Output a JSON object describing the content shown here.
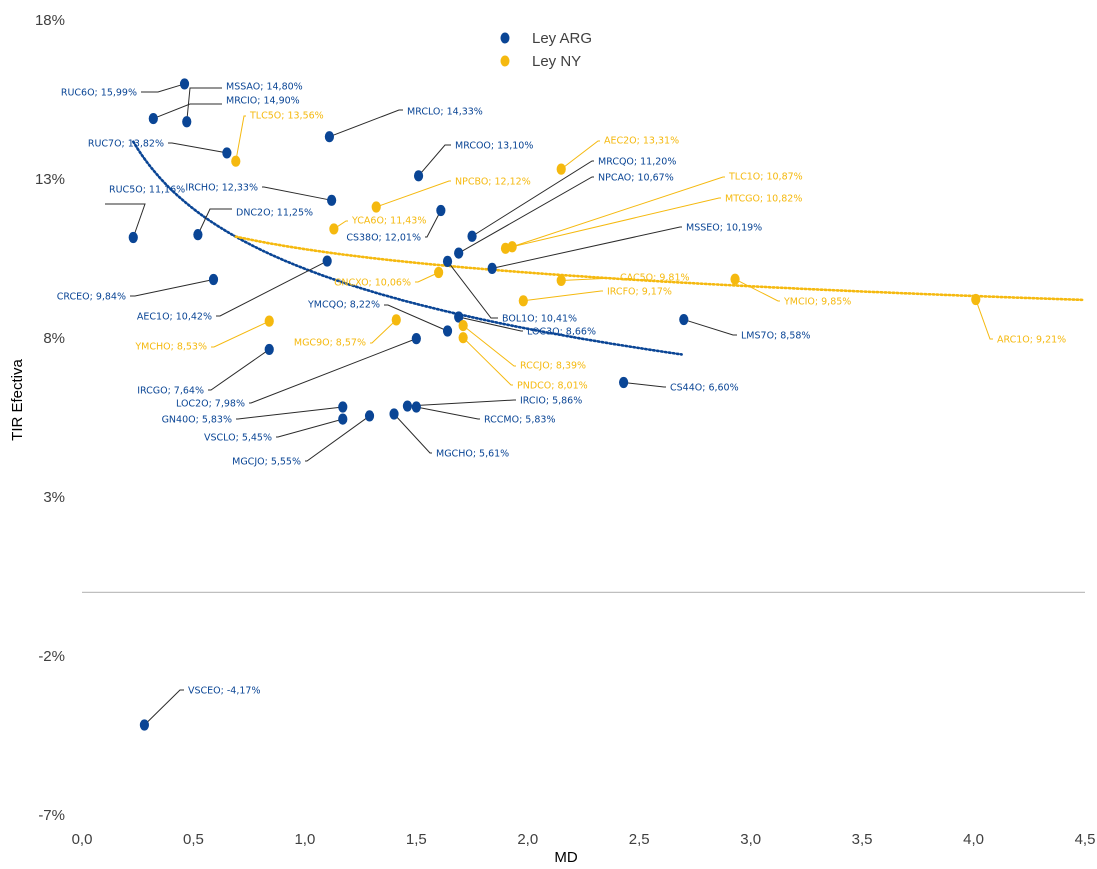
{
  "chart_data": {
    "type": "scatter",
    "title": "",
    "xlabel": "MD",
    "ylabel": "TIR Efectiva",
    "xlim": [
      0,
      4.5
    ],
    "ylim": [
      -7,
      18
    ],
    "x_ticks": [
      "0,0",
      "0,5",
      "1,0",
      "1,5",
      "2,0",
      "2,5",
      "3,0",
      "3,5",
      "4,0",
      "4,5"
    ],
    "y_ticks": [
      "-7%",
      "-2%",
      "3%",
      "8%",
      "13%",
      "18%"
    ],
    "grid": false,
    "legend_position": "top-center",
    "colors": {
      "ARG": "#0a4595",
      "NY": "#f5b90f"
    },
    "series": [
      {
        "name": "Ley ARG",
        "points": [
          {
            "x": 0.23,
            "y": 11.16,
            "label": "RUC5O; 11,16%"
          },
          {
            "x": 0.32,
            "y": 14.9,
            "label": "MRCIO; 14,90%"
          },
          {
            "x": 0.46,
            "y": 15.99,
            "label": "RUC6O; 15,99%"
          },
          {
            "x": 0.47,
            "y": 14.8,
            "label": "MSSAO; 14,80%"
          },
          {
            "x": 0.52,
            "y": 11.25,
            "label": "DNC2O; 11,25%"
          },
          {
            "x": 0.59,
            "y": 9.84,
            "label": "CRCEO; 9,84%"
          },
          {
            "x": 0.65,
            "y": 13.82,
            "label": "RUC7O; 13,82%"
          },
          {
            "x": 0.84,
            "y": 7.64,
            "label": "IRCGO; 7,64%"
          },
          {
            "x": 1.1,
            "y": 10.42,
            "label": "AEC1O; 10,42%"
          },
          {
            "x": 1.11,
            "y": 14.33,
            "label": "MRCLO; 14,33%"
          },
          {
            "x": 1.12,
            "y": 12.33,
            "label": "IRCHO; 12,33%"
          },
          {
            "x": 1.17,
            "y": 5.83,
            "label": "GN40O; 5,83%"
          },
          {
            "x": 1.17,
            "y": 5.45,
            "label": "VSCLO; 5,45%"
          },
          {
            "x": 1.29,
            "y": 5.55,
            "label": "MGCJO; 5,55%"
          },
          {
            "x": 1.4,
            "y": 5.61,
            "label": "MGCHO; 5,61%"
          },
          {
            "x": 1.46,
            "y": 5.86,
            "label": "IRCIO; 5,86%"
          },
          {
            "x": 1.5,
            "y": 5.83,
            "label": "RCCMO; 5,83%"
          },
          {
            "x": 1.5,
            "y": 7.98,
            "label": "LOC2O; 7,98%"
          },
          {
            "x": 1.51,
            "y": 13.1,
            "label": "MRCOO; 13,10%"
          },
          {
            "x": 1.61,
            "y": 12.01,
            "label": "CS38O; 12,01%"
          },
          {
            "x": 1.64,
            "y": 8.22,
            "label": "YMCQO; 8,22%"
          },
          {
            "x": 1.64,
            "y": 10.41,
            "label": "BOL1O; 10,41%"
          },
          {
            "x": 1.69,
            "y": 8.66,
            "label": "LOC3O; 8,66%"
          },
          {
            "x": 1.69,
            "y": 10.67,
            "label": "NPCAO; 10,67%"
          },
          {
            "x": 1.75,
            "y": 11.2,
            "label": "MRCQO; 11,20%"
          },
          {
            "x": 1.84,
            "y": 10.19,
            "label": "MSSEO; 10,19%"
          },
          {
            "x": 2.43,
            "y": 6.6,
            "label": "CS44O; 6,60%"
          },
          {
            "x": 2.7,
            "y": 8.58,
            "label": "LMS7O; 8,58%"
          },
          {
            "x": 0.28,
            "y": -4.17,
            "label": "VSCEO; -4,17%"
          }
        ]
      },
      {
        "name": "Ley NY",
        "points": [
          {
            "x": 0.69,
            "y": 13.56,
            "label": "TLC5O; 13,56%"
          },
          {
            "x": 0.84,
            "y": 8.53,
            "label": "YMCHO; 8,53%"
          },
          {
            "x": 1.13,
            "y": 11.43,
            "label": "YCA6O; 11,43%"
          },
          {
            "x": 1.32,
            "y": 12.12,
            "label": "NPCBO; 12,12%"
          },
          {
            "x": 1.41,
            "y": 8.57,
            "label": "MGC9O; 8,57%"
          },
          {
            "x": 1.6,
            "y": 10.06,
            "label": "GNCXO; 10,06%"
          },
          {
            "x": 1.71,
            "y": 8.39,
            "label": "RCCJO; 8,39%"
          },
          {
            "x": 1.71,
            "y": 8.01,
            "label": "PNDCO; 8,01%"
          },
          {
            "x": 1.9,
            "y": 10.82,
            "label": "MTCGO; 10,82%"
          },
          {
            "x": 1.93,
            "y": 10.87,
            "label": "TLC1O; 10,87%"
          },
          {
            "x": 1.98,
            "y": 9.17,
            "label": "IRCFO; 9,17%"
          },
          {
            "x": 2.15,
            "y": 13.31,
            "label": "AEC2O; 13,31%"
          },
          {
            "x": 2.15,
            "y": 9.81,
            "label": "CAC5O; 9,81%"
          },
          {
            "x": 2.93,
            "y": 9.85,
            "label": "YMCIO; 9,85%"
          },
          {
            "x": 4.01,
            "y": 9.21,
            "label": "ARC1O; 9,21%"
          }
        ]
      }
    ]
  }
}
